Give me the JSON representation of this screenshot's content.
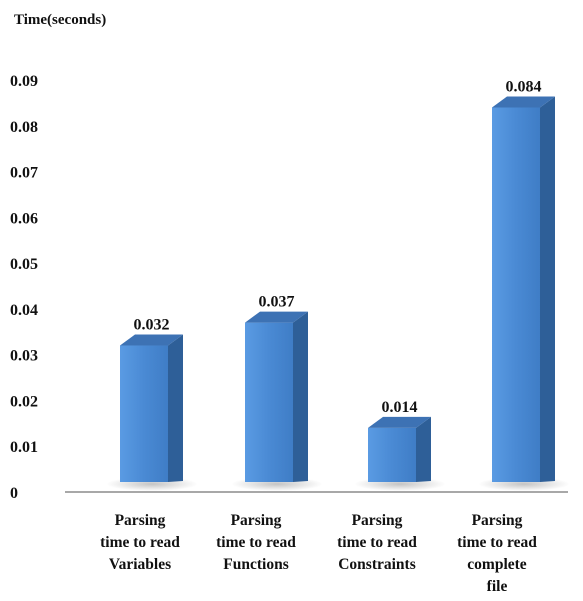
{
  "chart_data": {
    "type": "bar",
    "ylabel": "Time(seconds)",
    "ylim": [
      0,
      0.09
    ],
    "yticks": [
      "0",
      "0.01",
      "0.02",
      "0.03",
      "0.04",
      "0.05",
      "0.06",
      "0.07",
      "0.08",
      "0.09"
    ],
    "categories": [
      [
        "Parsing",
        "time to read",
        "Variables"
      ],
      [
        "Parsing",
        "time to read",
        "Functions"
      ],
      [
        "Parsing",
        "time to read",
        "Constraints"
      ],
      [
        "Parsing",
        "time to read",
        "complete",
        "file"
      ]
    ],
    "values": [
      0.032,
      0.037,
      0.014,
      0.084
    ],
    "data_labels": [
      "0.032",
      "0.037",
      "0.014",
      "0.084"
    ],
    "grid": false,
    "legend": "none",
    "bar_style": "3d",
    "colors": {
      "bar_front": "#4a8ad4",
      "bar_side": "#2e5f98",
      "bar_top": "#3d72b4",
      "axis": "#8c8c8c",
      "text": "#111111"
    }
  }
}
